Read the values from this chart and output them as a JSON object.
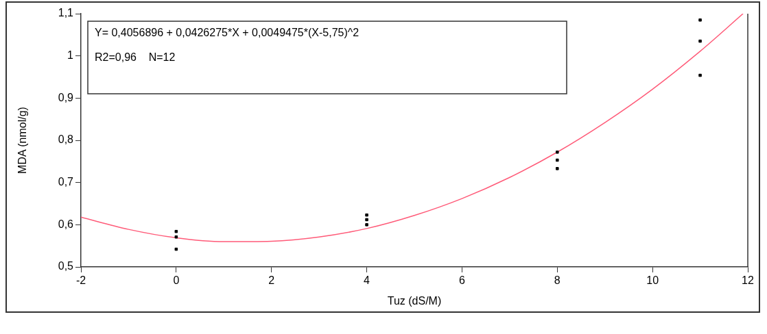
{
  "chart_data": {
    "type": "scatter",
    "xlabel": "Tuz (dS/M)",
    "ylabel": "MDA (nmol/g)",
    "annotations": [
      "Y= 0,4056896 + 0,0426275*X + 0,0049475*(X-5,75)^2",
      "R2=0,96    N=12"
    ],
    "series": [
      {
        "marker": "square",
        "color": "#000000",
        "x": [
          0,
          0,
          0,
          4,
          4,
          4,
          8,
          8,
          8,
          11,
          11,
          11
        ],
        "values": [
          0.584,
          0.571,
          0.542,
          0.623,
          0.612,
          0.6,
          0.772,
          0.753,
          0.733,
          1.085,
          1.035,
          0.954
        ]
      },
      {
        "type": "line",
        "marker": "none",
        "color": "#ff5a78",
        "x": [
          -2,
          -1,
          0,
          1,
          2,
          3,
          4,
          5,
          6,
          7,
          8,
          9,
          10,
          11,
          11.9
        ],
        "values": [
          0.618,
          0.589,
          0.569,
          0.56,
          0.561,
          0.571,
          0.591,
          0.622,
          0.662,
          0.712,
          0.772,
          0.842,
          0.921,
          1.011,
          1.1
        ]
      }
    ],
    "grid": false,
    "xlim": [
      -2,
      12
    ],
    "xticks": [
      -2,
      0,
      2,
      4,
      6,
      8,
      10,
      12
    ],
    "ylim": [
      0.5,
      1.1
    ],
    "yticks": [
      {
        "value": 0.5,
        "label": "0,5"
      },
      {
        "value": 0.6,
        "label": "0,6"
      },
      {
        "value": 0.7,
        "label": "0,7"
      },
      {
        "value": 0.8,
        "label": "0,8"
      },
      {
        "value": 0.9,
        "label": "0,9"
      },
      {
        "value": 1,
        "label": "1"
      },
      {
        "value": 1.1,
        "label": "1,1"
      }
    ]
  }
}
